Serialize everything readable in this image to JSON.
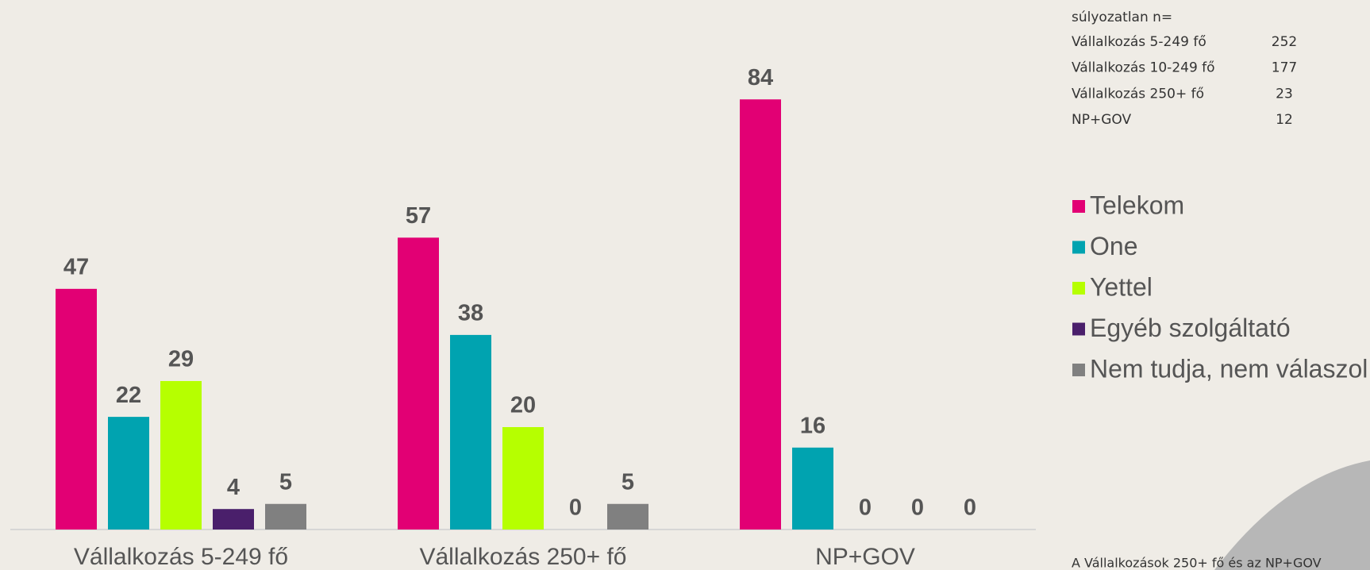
{
  "chart_data": {
    "type": "bar",
    "categories": [
      "Vállalkozás 5-249 fő",
      "Vállalkozás 250+ fő",
      "NP+GOV"
    ],
    "series": [
      {
        "name": "Telekom",
        "color": "#e20074",
        "values": [
          47,
          57,
          84
        ]
      },
      {
        "name": "One",
        "color": "#00a3b0",
        "values": [
          22,
          38,
          16
        ]
      },
      {
        "name": "Yettel",
        "color": "#b6ff00",
        "values": [
          29,
          20,
          0
        ]
      },
      {
        "name": "Egyéb szolgáltató",
        "color": "#4a1f6b",
        "values": [
          4,
          0,
          0
        ]
      },
      {
        "name": "Nem tudja, nem válaszol",
        "color": "#808080",
        "values": [
          5,
          5,
          0
        ]
      }
    ]
  },
  "sample_table": {
    "title": "súlyozatlan n=",
    "rows": [
      {
        "label": "Vállalkozás 5-249 fő",
        "n": 252
      },
      {
        "label": "Vállalkozás 10-249 fő",
        "n": 177
      },
      {
        "label": "Vállalkozás 250+ fő",
        "n": 23
      },
      {
        "label": "NP+GOV",
        "n": 12
      }
    ]
  },
  "footnote": "A Vállalkozások 250+ fő és az NP+GOV"
}
